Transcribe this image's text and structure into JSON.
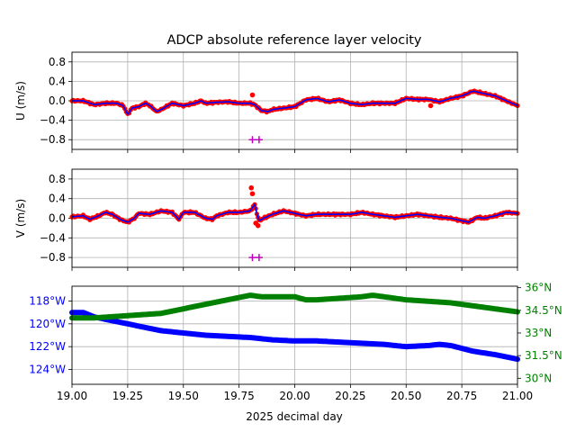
{
  "title": "ADCP absolute reference layer velocity",
  "xlabel": "2025 decimal day",
  "colors": {
    "dots": "#ff0000",
    "smooth": "#0000ff",
    "marker": "#bf00bf",
    "lon": "#0000ff",
    "lat": "#008000",
    "grid": "#b0b0b0"
  },
  "chart_data": [
    {
      "type": "scatter",
      "ylabel": "U (m/s)",
      "xlim": [
        19.0,
        21.0
      ],
      "ylim": [
        -1.0,
        1.0
      ],
      "xticks": [
        19.0,
        19.25,
        19.5,
        19.75,
        20.0,
        20.25,
        20.5,
        20.75,
        21.0
      ],
      "yticks": [
        "0.8",
        "0.4",
        "0.0",
        "−0.4",
        "−0.8"
      ],
      "ytick_values": [
        0.8,
        0.4,
        0.0,
        -0.4,
        -0.8
      ],
      "grid": true,
      "series": [
        {
          "x": [
            19.0,
            19.05,
            19.1,
            19.15,
            19.2,
            19.23,
            19.25,
            19.27,
            19.3,
            19.33,
            19.35,
            19.38,
            19.4,
            19.45,
            19.5,
            19.55,
            19.58,
            19.6,
            19.65,
            19.7,
            19.75,
            19.78,
            19.8,
            19.82,
            19.85,
            19.88,
            19.9,
            19.95,
            20.0,
            20.05,
            20.1,
            20.15,
            20.2,
            20.25,
            20.3,
            20.35,
            20.4,
            20.45,
            20.5,
            20.55,
            20.6,
            20.65,
            20.7,
            20.75,
            20.8,
            20.85,
            20.9,
            20.95,
            21.0
          ],
          "values": [
            0.0,
            0.0,
            -0.08,
            -0.05,
            -0.05,
            -0.1,
            -0.28,
            -0.15,
            -0.12,
            -0.05,
            -0.1,
            -0.22,
            -0.18,
            -0.05,
            -0.1,
            -0.05,
            0.0,
            -0.05,
            -0.03,
            -0.02,
            -0.05,
            -0.05,
            -0.05,
            -0.08,
            -0.2,
            -0.22,
            -0.18,
            -0.15,
            -0.12,
            0.02,
            0.05,
            -0.02,
            0.02,
            -0.05,
            -0.08,
            -0.05,
            -0.05,
            -0.05,
            0.05,
            0.03,
            0.03,
            -0.02,
            0.05,
            0.1,
            0.2,
            0.15,
            0.1,
            0.0,
            -0.1
          ]
        }
      ],
      "outliers": {
        "x": [
          19.81,
          20.61
        ],
        "values": [
          0.12,
          -0.1
        ]
      },
      "markers": {
        "x": [
          19.81,
          19.84
        ],
        "values": [
          -0.8,
          -0.8
        ]
      }
    },
    {
      "type": "scatter",
      "ylabel": "V (m/s)",
      "xlim": [
        19.0,
        21.0
      ],
      "ylim": [
        -1.0,
        1.0
      ],
      "xticks": [
        19.0,
        19.25,
        19.5,
        19.75,
        20.0,
        20.25,
        20.5,
        20.75,
        21.0
      ],
      "yticks": [
        "0.8",
        "0.4",
        "0.0",
        "−0.4",
        "−0.8"
      ],
      "ytick_values": [
        0.8,
        0.4,
        0.0,
        -0.4,
        -0.8
      ],
      "grid": true,
      "series": [
        {
          "x": [
            19.0,
            19.05,
            19.08,
            19.12,
            19.15,
            19.18,
            19.22,
            19.25,
            19.28,
            19.3,
            19.35,
            19.4,
            19.45,
            19.48,
            19.5,
            19.55,
            19.6,
            19.63,
            19.65,
            19.7,
            19.75,
            19.8,
            19.82,
            19.83,
            19.84,
            19.86,
            19.9,
            19.95,
            20.0,
            20.05,
            20.1,
            20.15,
            20.2,
            20.25,
            20.3,
            20.35,
            20.4,
            20.45,
            20.5,
            20.55,
            20.6,
            20.65,
            20.7,
            20.75,
            20.78,
            20.82,
            20.85,
            20.9,
            20.95,
            21.0
          ],
          "values": [
            0.03,
            0.05,
            -0.02,
            0.05,
            0.12,
            0.08,
            -0.03,
            -0.08,
            0.0,
            0.1,
            0.08,
            0.15,
            0.12,
            -0.02,
            0.12,
            0.12,
            0.0,
            -0.02,
            0.05,
            0.12,
            0.12,
            0.15,
            0.28,
            0.1,
            -0.05,
            0.0,
            0.08,
            0.15,
            0.1,
            0.05,
            0.08,
            0.08,
            0.08,
            0.08,
            0.12,
            0.08,
            0.05,
            0.02,
            0.05,
            0.08,
            0.05,
            0.02,
            0.0,
            -0.05,
            -0.08,
            0.02,
            0.0,
            0.05,
            0.12,
            0.1
          ]
        }
      ],
      "outliers": {
        "x": [
          19.805,
          19.81,
          19.825,
          19.835
        ],
        "values": [
          0.62,
          0.5,
          -0.1,
          -0.15
        ]
      },
      "markers": {
        "x": [
          19.81,
          19.84
        ],
        "values": [
          -0.8,
          -0.8
        ]
      }
    },
    {
      "type": "scatter",
      "xlim": [
        19.0,
        21.0
      ],
      "left_axis": {
        "ylim": [
          -125.3,
          -116.7
        ],
        "yticks": [
          "118°W",
          "120°W",
          "122°W",
          "124°W"
        ],
        "ytick_values": [
          -118,
          -120,
          -122,
          -124
        ]
      },
      "right_axis": {
        "ylim": [
          29.6,
          36.1
        ],
        "yticks": [
          "36°N",
          "34.5°N",
          "33°N",
          "31.5°N",
          "30°N"
        ],
        "ytick_values": [
          36,
          34.5,
          33,
          31.5,
          30
        ]
      },
      "xticks": [
        "19.00",
        "19.25",
        "19.50",
        "19.75",
        "20.00",
        "20.25",
        "20.50",
        "20.75",
        "21.00"
      ],
      "xtick_values": [
        19.0,
        19.25,
        19.5,
        19.75,
        20.0,
        20.25,
        20.5,
        20.75,
        21.0
      ],
      "grid": true,
      "series": [
        {
          "axis": "left",
          "x": [
            19.0,
            19.05,
            19.1,
            19.2,
            19.3,
            19.4,
            19.5,
            19.6,
            19.7,
            19.8,
            19.9,
            20.0,
            20.1,
            20.2,
            20.3,
            20.4,
            20.5,
            20.6,
            20.65,
            20.7,
            20.8,
            20.9,
            21.0
          ],
          "values": [
            -119.0,
            -119.0,
            -119.4,
            -119.8,
            -120.2,
            -120.6,
            -120.8,
            -121.0,
            -121.1,
            -121.2,
            -121.4,
            -121.5,
            -121.5,
            -121.6,
            -121.7,
            -121.8,
            -122.0,
            -121.9,
            -121.8,
            -121.9,
            -122.4,
            -122.7,
            -123.1
          ]
        },
        {
          "axis": "right",
          "x": [
            19.0,
            19.1,
            19.2,
            19.3,
            19.4,
            19.5,
            19.6,
            19.7,
            19.8,
            19.85,
            19.9,
            20.0,
            20.05,
            20.1,
            20.2,
            20.3,
            20.35,
            20.4,
            20.5,
            20.6,
            20.7,
            20.8,
            20.9,
            21.0
          ],
          "values": [
            34.0,
            34.0,
            34.1,
            34.2,
            34.3,
            34.6,
            34.9,
            35.2,
            35.5,
            35.4,
            35.4,
            35.4,
            35.2,
            35.2,
            35.3,
            35.4,
            35.5,
            35.4,
            35.2,
            35.1,
            35.0,
            34.8,
            34.6,
            34.4
          ]
        }
      ]
    }
  ]
}
